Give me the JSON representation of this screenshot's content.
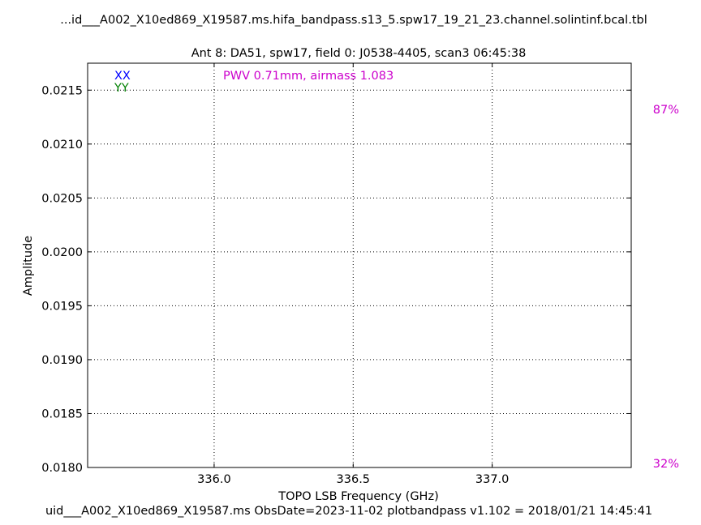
{
  "chart_data": {
    "type": "line",
    "top_title": "...id___A002_X10ed869_X19587.ms.hifa_bandpass.s13_5.spw17_19_21_23.channel.solintinf.bcal.tbl",
    "title": "Ant 8: DA51,  spw17,  field 0: J0538-4405,  scan3  06:45:38",
    "xlabel": "TOPO LSB Frequency (GHz)",
    "ylabel": "Amplitude",
    "xlim": [
      335.545,
      337.5
    ],
    "ylim": [
      0.018,
      0.02175
    ],
    "xticks": [
      336.0,
      336.5,
      337.0
    ],
    "xtick_labels": [
      "336.0",
      "336.5",
      "337.0"
    ],
    "yticks": [
      0.018,
      0.0185,
      0.019,
      0.0195,
      0.02,
      0.0205,
      0.021,
      0.0215
    ],
    "ytick_labels": [
      "0.0180",
      "0.0185",
      "0.0190",
      "0.0195",
      "0.0200",
      "0.0205",
      "0.0210",
      "0.0215"
    ],
    "grid": true,
    "legend_placement": "top-left",
    "series": [
      {
        "name": "XX",
        "color": "#0000ff",
        "values": []
      },
      {
        "name": "YY",
        "color": "#008000",
        "values": []
      }
    ],
    "annotation": {
      "text": "PWV 0.71mm, airmass 1.083",
      "color": "#cc00cc"
    },
    "right_axis_labels": [
      {
        "text": "87%",
        "value": 0.87
      },
      {
        "text": "32%",
        "value": 0.32
      }
    ],
    "right_axis_color": "#cc00cc",
    "footer": "uid___A002_X10ed869_X19587.ms  ObsDate=2023-11-02   plotbandpass v1.102 = 2018/01/21 14:45:41"
  }
}
